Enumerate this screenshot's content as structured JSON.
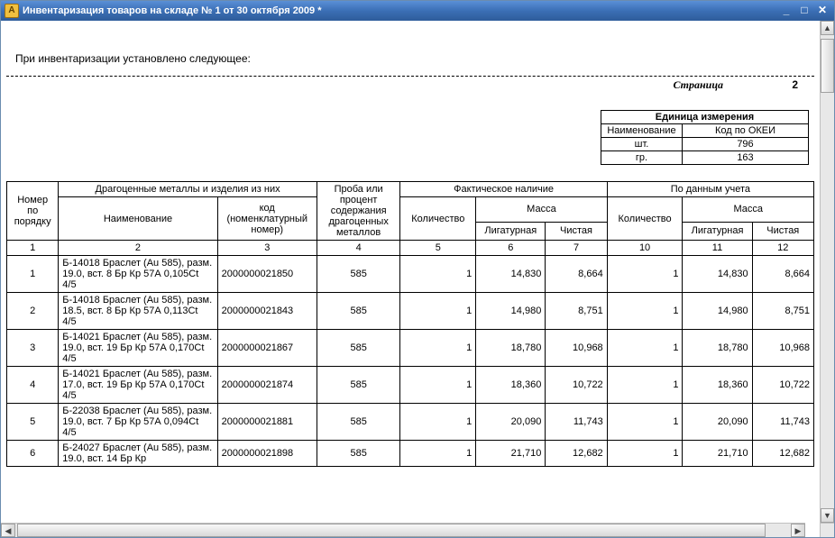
{
  "window": {
    "title": "Инвентаризация товаров на складе № 1 от 30 октября 2009 *"
  },
  "intro_text": "При инвентаризации установлено следующее:",
  "page": {
    "label": "Страница",
    "number": "2"
  },
  "unit_table": {
    "header_title": "Единица измерения",
    "col_name": "Наименование",
    "col_code": "Код по ОКЕИ",
    "rows": [
      {
        "name": "шт.",
        "code": "796"
      },
      {
        "name": "гр.",
        "code": "163"
      }
    ]
  },
  "columns": {
    "order_no": "Номер по порядку",
    "precious_group": "Драгоценные металлы и изделия из них",
    "name": "Наименование",
    "code": "код (номенклатурный номер)",
    "sample": "Проба или процент содержания драгоценных металлов",
    "actual_group": "Фактическое наличие",
    "account_group": "По данным учета",
    "qty": "Количество",
    "mass": "Масса",
    "mass_lig": "Лигатурная",
    "mass_pure": "Чистая"
  },
  "colnums": {
    "c1": "1",
    "c2": "2",
    "c3": "3",
    "c4": "4",
    "c5": "5",
    "c6": "6",
    "c7": "7",
    "c10": "10",
    "c11": "11",
    "c12": "12"
  },
  "rows": [
    {
      "idx": "1",
      "name": "Б-14018 Браслет (Au 585), разм. 19.0, вст. 8 Бр Кр 57А 0,105Ct 4/5",
      "code": "2000000021850",
      "sample": "585",
      "a_qty": "1",
      "a_lig": "14,830",
      "a_pure": "8,664",
      "b_qty": "1",
      "b_lig": "14,830",
      "b_pure": "8,664"
    },
    {
      "idx": "2",
      "name": "Б-14018 Браслет (Au 585), разм. 18.5, вст. 8 Бр Кр 57А 0,113Ct 4/5",
      "code": "2000000021843",
      "sample": "585",
      "a_qty": "1",
      "a_lig": "14,980",
      "a_pure": "8,751",
      "b_qty": "1",
      "b_lig": "14,980",
      "b_pure": "8,751"
    },
    {
      "idx": "3",
      "name": "Б-14021 Браслет (Au 585), разм. 19.0, вст. 19 Бр Кр 57А 0,170Ct 4/5",
      "code": "2000000021867",
      "sample": "585",
      "a_qty": "1",
      "a_lig": "18,780",
      "a_pure": "10,968",
      "b_qty": "1",
      "b_lig": "18,780",
      "b_pure": "10,968"
    },
    {
      "idx": "4",
      "name": "Б-14021 Браслет (Au 585), разм. 17.0, вст. 19 Бр Кр 57А 0,170Ct 4/5",
      "code": "2000000021874",
      "sample": "585",
      "a_qty": "1",
      "a_lig": "18,360",
      "a_pure": "10,722",
      "b_qty": "1",
      "b_lig": "18,360",
      "b_pure": "10,722"
    },
    {
      "idx": "5",
      "name": "Б-22038 Браслет (Au 585), разм. 19.0, вст. 7 Бр Кр 57А 0,094Ct 4/5",
      "code": "2000000021881",
      "sample": "585",
      "a_qty": "1",
      "a_lig": "20,090",
      "a_pure": "11,743",
      "b_qty": "1",
      "b_lig": "20,090",
      "b_pure": "11,743"
    },
    {
      "idx": "6",
      "name": "Б-24027 Браслет (Au 585), разм. 19.0, вст. 14 Бр Кр",
      "code": "2000000021898",
      "sample": "585",
      "a_qty": "1",
      "a_lig": "21,710",
      "a_pure": "12,682",
      "b_qty": "1",
      "b_lig": "21,710",
      "b_pure": "12,682"
    }
  ]
}
